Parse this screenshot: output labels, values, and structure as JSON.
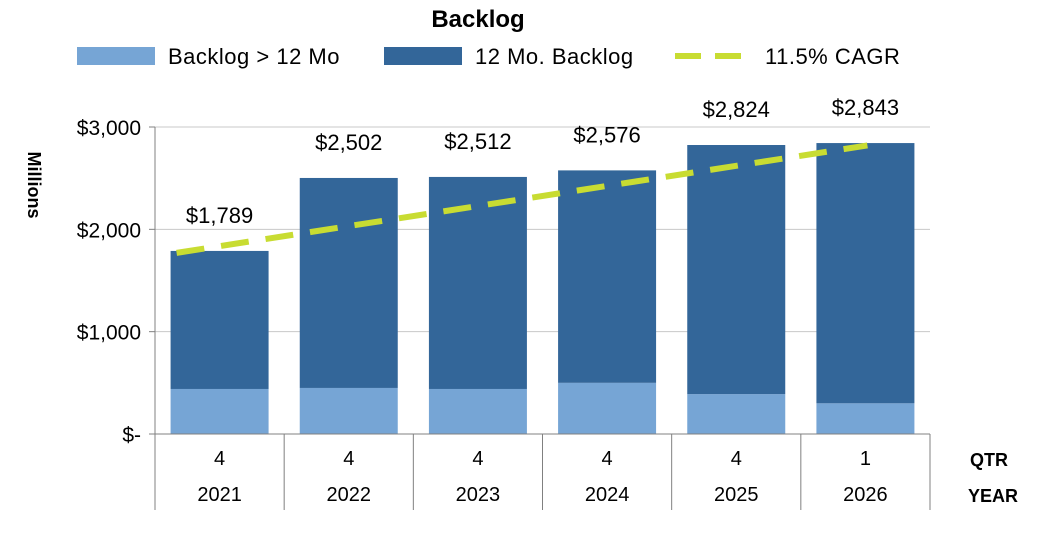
{
  "chart_data": {
    "type": "bar",
    "stacked": true,
    "title": "Backlog",
    "ylabel": "Millions",
    "ylim": [
      0,
      3000
    ],
    "yticks": [
      0,
      1000,
      2000,
      3000
    ],
    "ytick_labels": [
      "$-",
      "$1,000",
      "$2,000",
      "$3,000"
    ],
    "grid": true,
    "legend_position": "top",
    "categories": [
      {
        "qtr": "4",
        "year": "2021"
      },
      {
        "qtr": "4",
        "year": "2022"
      },
      {
        "qtr": "4",
        "year": "2023"
      },
      {
        "qtr": "4",
        "year": "2024"
      },
      {
        "qtr": "4",
        "year": "2025"
      },
      {
        "qtr": "1",
        "year": "2026"
      }
    ],
    "row_labels": {
      "qtr": "QTR",
      "year": "YEAR"
    },
    "series": [
      {
        "name": "Backlog > 12 Mo",
        "color": "#76a5d5",
        "values": [
          440,
          450,
          440,
          500,
          390,
          300
        ]
      },
      {
        "name": "12 Mo. Backlog",
        "color": "#336699",
        "values": [
          1349,
          2052,
          2072,
          2076,
          2434,
          2543
        ]
      }
    ],
    "totals": [
      1789,
      2502,
      2512,
      2576,
      2824,
      2843
    ],
    "total_labels": [
      "$1,789",
      "$2,502",
      "$2,512",
      "$2,576",
      "$2,824",
      "$2,843"
    ],
    "trendline": {
      "name": "11.5% CAGR",
      "color": "#c8dc32",
      "style": "dashed",
      "start": {
        "category": "2021",
        "value": 1770
      },
      "end": {
        "category": "2026",
        "value": 2820
      }
    }
  }
}
